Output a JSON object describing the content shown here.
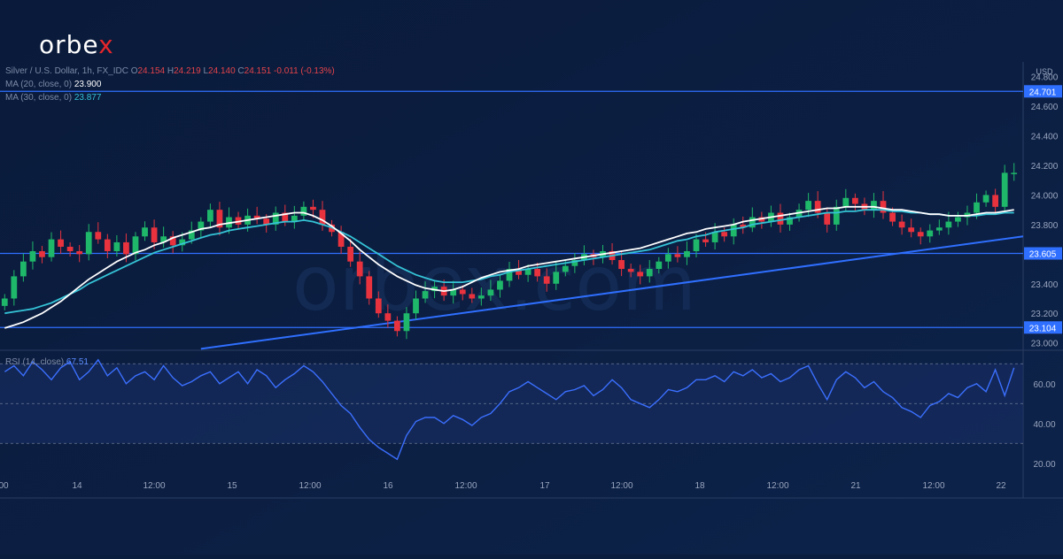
{
  "brand": {
    "name": "orbe",
    "accent": "x"
  },
  "legend": {
    "symbol": "Silver / U.S. Dollar, 1h, FX_IDC",
    "o_label": "O",
    "o": "24.154",
    "h_label": "H",
    "h": "24.219",
    "l_label": "L",
    "l": "24.140",
    "c_label": "C",
    "c": "24.151",
    "change": "-0.011 (-0.13%)",
    "ma20_label": "MA (20, close, 0)",
    "ma20_value": "23.900",
    "ma30_label": "MA (30, close, 0)",
    "ma30_value": "23.877",
    "rsi_label": "RSI (14, close)",
    "rsi_value": "67.51"
  },
  "colors": {
    "up": "#1fb86a",
    "down": "#e8333e",
    "ma20": "#ffffff",
    "ma30": "#35c3d6",
    "line": "#2f6fff",
    "rsi": "#3b6fff"
  },
  "chart_data": [
    {
      "type": "candlestick",
      "unit": "USD",
      "ylim": [
        22.95,
        24.9
      ],
      "y_ticks": [
        "23.000",
        "23.200",
        "23.400",
        "23.800",
        "24.000",
        "24.200",
        "24.400",
        "24.600",
        "24.800"
      ],
      "x_ticks": [
        "00",
        "14",
        "12:00",
        "15",
        "12:00",
        "16",
        "12:00",
        "17",
        "12:00",
        "18",
        "12:00",
        "21",
        "12:00",
        "22"
      ],
      "levels": [
        {
          "value": 24.701,
          "label": "24.701"
        },
        {
          "value": 23.605,
          "label": "23.605"
        },
        {
          "value": 23.104,
          "label": "23.104"
        }
      ],
      "trendline": {
        "from": {
          "bar": 21,
          "price": 22.96
        },
        "to": {
          "bar": 169,
          "price": 23.72
        }
      },
      "series": [
        {
          "name": "MA (20, close, 0)",
          "values": [
            23.1,
            23.12,
            23.14,
            23.17,
            23.2,
            23.24,
            23.28,
            23.33,
            23.38,
            23.43,
            23.47,
            23.51,
            23.55,
            23.58,
            23.61,
            23.63,
            23.66,
            23.68,
            23.71,
            23.73,
            23.75,
            23.77,
            23.78,
            23.8,
            23.81,
            23.82,
            23.83,
            23.84,
            23.85,
            23.86,
            23.87,
            23.88,
            23.88,
            23.86,
            23.83,
            23.79,
            23.74,
            23.69,
            23.63,
            23.58,
            23.53,
            23.49,
            23.45,
            23.42,
            23.39,
            23.37,
            23.36,
            23.35,
            23.36,
            23.38,
            23.41,
            23.44,
            23.46,
            23.48,
            23.49,
            23.5,
            23.52,
            23.53,
            23.54,
            23.55,
            23.56,
            23.57,
            23.58,
            23.59,
            23.6,
            23.61,
            23.62,
            23.63,
            23.64,
            23.66,
            23.68,
            23.7,
            23.72,
            23.74,
            23.75,
            23.77,
            23.78,
            23.79,
            23.8,
            23.82,
            23.83,
            23.84,
            23.85,
            23.86,
            23.87,
            23.88,
            23.89,
            23.9,
            23.91,
            23.91,
            23.92,
            23.92,
            23.92,
            23.92,
            23.91,
            23.9,
            23.9,
            23.89,
            23.88,
            23.87,
            23.87,
            23.86,
            23.86,
            23.86,
            23.87,
            23.88,
            23.88,
            23.89,
            23.9
          ]
        },
        {
          "name": "MA (30, close, 0)",
          "values": [
            23.2,
            23.21,
            23.22,
            23.23,
            23.25,
            23.27,
            23.3,
            23.33,
            23.36,
            23.4,
            23.43,
            23.46,
            23.49,
            23.52,
            23.55,
            23.58,
            23.61,
            23.63,
            23.65,
            23.67,
            23.69,
            23.71,
            23.73,
            23.74,
            23.76,
            23.77,
            23.78,
            23.79,
            23.8,
            23.81,
            23.82,
            23.82,
            23.83,
            23.82,
            23.8,
            23.78,
            23.75,
            23.72,
            23.68,
            23.64,
            23.6,
            23.56,
            23.52,
            23.49,
            23.46,
            23.44,
            23.42,
            23.41,
            23.41,
            23.41,
            23.42,
            23.43,
            23.45,
            23.46,
            23.48,
            23.49,
            23.5,
            23.51,
            23.52,
            23.53,
            23.54,
            23.55,
            23.56,
            23.57,
            23.58,
            23.59,
            23.6,
            23.61,
            23.62,
            23.63,
            23.65,
            23.67,
            23.69,
            23.7,
            23.72,
            23.73,
            23.75,
            23.76,
            23.77,
            23.78,
            23.8,
            23.81,
            23.82,
            23.83,
            23.84,
            23.85,
            23.86,
            23.87,
            23.88,
            23.88,
            23.89,
            23.89,
            23.9,
            23.9,
            23.9,
            23.89,
            23.89,
            23.88,
            23.88,
            23.87,
            23.87,
            23.86,
            23.86,
            23.86,
            23.86,
            23.87,
            23.87,
            23.88,
            23.88
          ]
        },
        {
          "name": "candles",
          "close": [
            23.3,
            23.45,
            23.55,
            23.62,
            23.58,
            23.7,
            23.65,
            23.62,
            23.6,
            23.75,
            23.7,
            23.62,
            23.68,
            23.6,
            23.72,
            23.78,
            23.68,
            23.72,
            23.66,
            23.7,
            23.76,
            23.82,
            23.9,
            23.78,
            23.85,
            23.8,
            23.86,
            23.84,
            23.8,
            23.88,
            23.82,
            23.86,
            23.92,
            23.9,
            23.8,
            23.75,
            23.65,
            23.55,
            23.45,
            23.3,
            23.2,
            23.15,
            23.08,
            23.2,
            23.3,
            23.35,
            23.38,
            23.32,
            23.36,
            23.33,
            23.3,
            23.32,
            23.36,
            23.42,
            23.5,
            23.46,
            23.5,
            23.45,
            23.4,
            23.48,
            23.52,
            23.56,
            23.6,
            23.58,
            23.62,
            23.56,
            23.5,
            23.48,
            23.45,
            23.5,
            23.55,
            23.6,
            23.58,
            23.62,
            23.7,
            23.68,
            23.75,
            23.72,
            23.8,
            23.78,
            23.85,
            23.82,
            23.88,
            23.8,
            23.85,
            23.9,
            23.96,
            23.88,
            23.8,
            23.92,
            23.98,
            23.94,
            23.9,
            23.96,
            23.88,
            23.82,
            23.78,
            23.75,
            23.72,
            23.76,
            23.78,
            23.82,
            23.85,
            23.88,
            23.95,
            24.0,
            23.92,
            24.15,
            24.15
          ]
        }
      ]
    },
    {
      "type": "line",
      "name": "RSI (14, close)",
      "ylim": [
        15,
        75
      ],
      "y_ticks": [
        "20.00",
        "40.00",
        "60.00"
      ],
      "levels": [
        70,
        50,
        30
      ],
      "values": [
        66,
        69,
        64,
        71,
        67,
        62,
        68,
        71,
        62,
        66,
        72,
        64,
        68,
        60,
        64,
        66,
        62,
        69,
        63,
        59,
        61,
        64,
        66,
        60,
        63,
        66,
        60,
        67,
        64,
        58,
        62,
        65,
        69,
        66,
        61,
        55,
        49,
        45,
        38,
        32,
        28,
        25,
        22,
        34,
        41,
        43,
        43,
        40,
        44,
        42,
        39,
        43,
        45,
        50,
        56,
        58,
        61,
        58,
        55,
        52,
        56,
        57,
        59,
        54,
        57,
        62,
        58,
        52,
        50,
        48,
        52,
        57,
        56,
        58,
        62,
        62,
        64,
        61,
        66,
        64,
        67,
        63,
        65,
        61,
        63,
        67,
        69,
        60,
        52,
        62,
        66,
        63,
        58,
        61,
        56,
        53,
        48,
        46,
        43,
        49,
        51,
        55,
        53,
        58,
        60,
        56,
        67,
        54,
        68
      ]
    }
  ]
}
